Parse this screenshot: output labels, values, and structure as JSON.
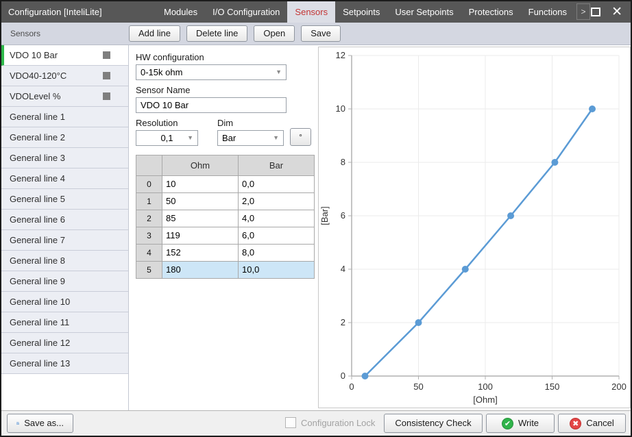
{
  "window": {
    "title": "Configuration [InteliLite]",
    "tabs": [
      {
        "label": "Modules",
        "active": false
      },
      {
        "label": "I/O Configuration",
        "active": false
      },
      {
        "label": "Sensors",
        "active": true
      },
      {
        "label": "Setpoints",
        "active": false
      },
      {
        "label": "User Setpoints",
        "active": false
      },
      {
        "label": "Protections",
        "active": false
      },
      {
        "label": "Functions",
        "active": false
      }
    ],
    "overflow_button": ">",
    "close_glyph": "✕"
  },
  "toolbar": {
    "panel_label": "Sensors",
    "buttons": [
      "Add line",
      "Delete line",
      "Open",
      "Save"
    ]
  },
  "sidebar": {
    "items": [
      {
        "label": "VDO 10 Bar",
        "selected": true,
        "has_square": true
      },
      {
        "label": "VDO40-120°C",
        "selected": false,
        "has_square": true
      },
      {
        "label": "VDOLevel %",
        "selected": false,
        "has_square": true
      },
      {
        "label": "General line 1",
        "selected": false,
        "has_square": false
      },
      {
        "label": "General line 2",
        "selected": false,
        "has_square": false
      },
      {
        "label": "General line 3",
        "selected": false,
        "has_square": false
      },
      {
        "label": "General line 4",
        "selected": false,
        "has_square": false
      },
      {
        "label": "General line 5",
        "selected": false,
        "has_square": false
      },
      {
        "label": "General line 6",
        "selected": false,
        "has_square": false
      },
      {
        "label": "General line 7",
        "selected": false,
        "has_square": false
      },
      {
        "label": "General line 8",
        "selected": false,
        "has_square": false
      },
      {
        "label": "General line 9",
        "selected": false,
        "has_square": false
      },
      {
        "label": "General line 10",
        "selected": false,
        "has_square": false
      },
      {
        "label": "General line 11",
        "selected": false,
        "has_square": false
      },
      {
        "label": "General line 12",
        "selected": false,
        "has_square": false
      },
      {
        "label": "General line 13",
        "selected": false,
        "has_square": false
      }
    ]
  },
  "form": {
    "hw_configuration": {
      "label": "HW configuration",
      "value": "0-15k ohm"
    },
    "sensor_name": {
      "label": "Sensor Name",
      "value": "VDO 10 Bar"
    },
    "resolution": {
      "label": "Resolution",
      "value": "0,1"
    },
    "dim": {
      "label": "Dim",
      "value": "Bar"
    },
    "degree_button": "°"
  },
  "table": {
    "columns": [
      "Ohm",
      "Bar"
    ],
    "rows": [
      {
        "index": "0",
        "cells": [
          "10",
          "0,0"
        ],
        "selected": false
      },
      {
        "index": "1",
        "cells": [
          "50",
          "2,0"
        ],
        "selected": false
      },
      {
        "index": "2",
        "cells": [
          "85",
          "4,0"
        ],
        "selected": false
      },
      {
        "index": "3",
        "cells": [
          "119",
          "6,0"
        ],
        "selected": false
      },
      {
        "index": "4",
        "cells": [
          "152",
          "8,0"
        ],
        "selected": false
      },
      {
        "index": "5",
        "cells": [
          "180",
          "10,0"
        ],
        "selected": true
      }
    ]
  },
  "chart_data": {
    "type": "line",
    "x": [
      10,
      50,
      85,
      119,
      152,
      180
    ],
    "y": [
      0.0,
      2.0,
      4.0,
      6.0,
      8.0,
      10.0
    ],
    "xlabel": "[Ohm]",
    "ylabel": "[Bar]",
    "xlim": [
      0,
      200
    ],
    "ylim": [
      0,
      12
    ],
    "x_ticks": [
      0,
      50,
      100,
      150,
      200
    ],
    "y_ticks": [
      0,
      2,
      4,
      6,
      8,
      10,
      12
    ],
    "grid": true,
    "legend": "none",
    "line_color": "#5b9bd5"
  },
  "footer": {
    "save_as": "Save as...",
    "configuration_lock": "Configuration Lock",
    "consistency_check": "Consistency Check",
    "write": "Write",
    "cancel": "Cancel",
    "write_icon_glyph": "✔",
    "cancel_icon_glyph": "✖"
  },
  "icons": {
    "dropdown_arrow": "▼"
  },
  "colors": {
    "titlebar": "#575757",
    "active_tab_text": "#c43535",
    "selected_item_accent": "#2eb84a",
    "selected_row_bg": "#cde6f7",
    "chart_line": "#5b9bd5"
  }
}
